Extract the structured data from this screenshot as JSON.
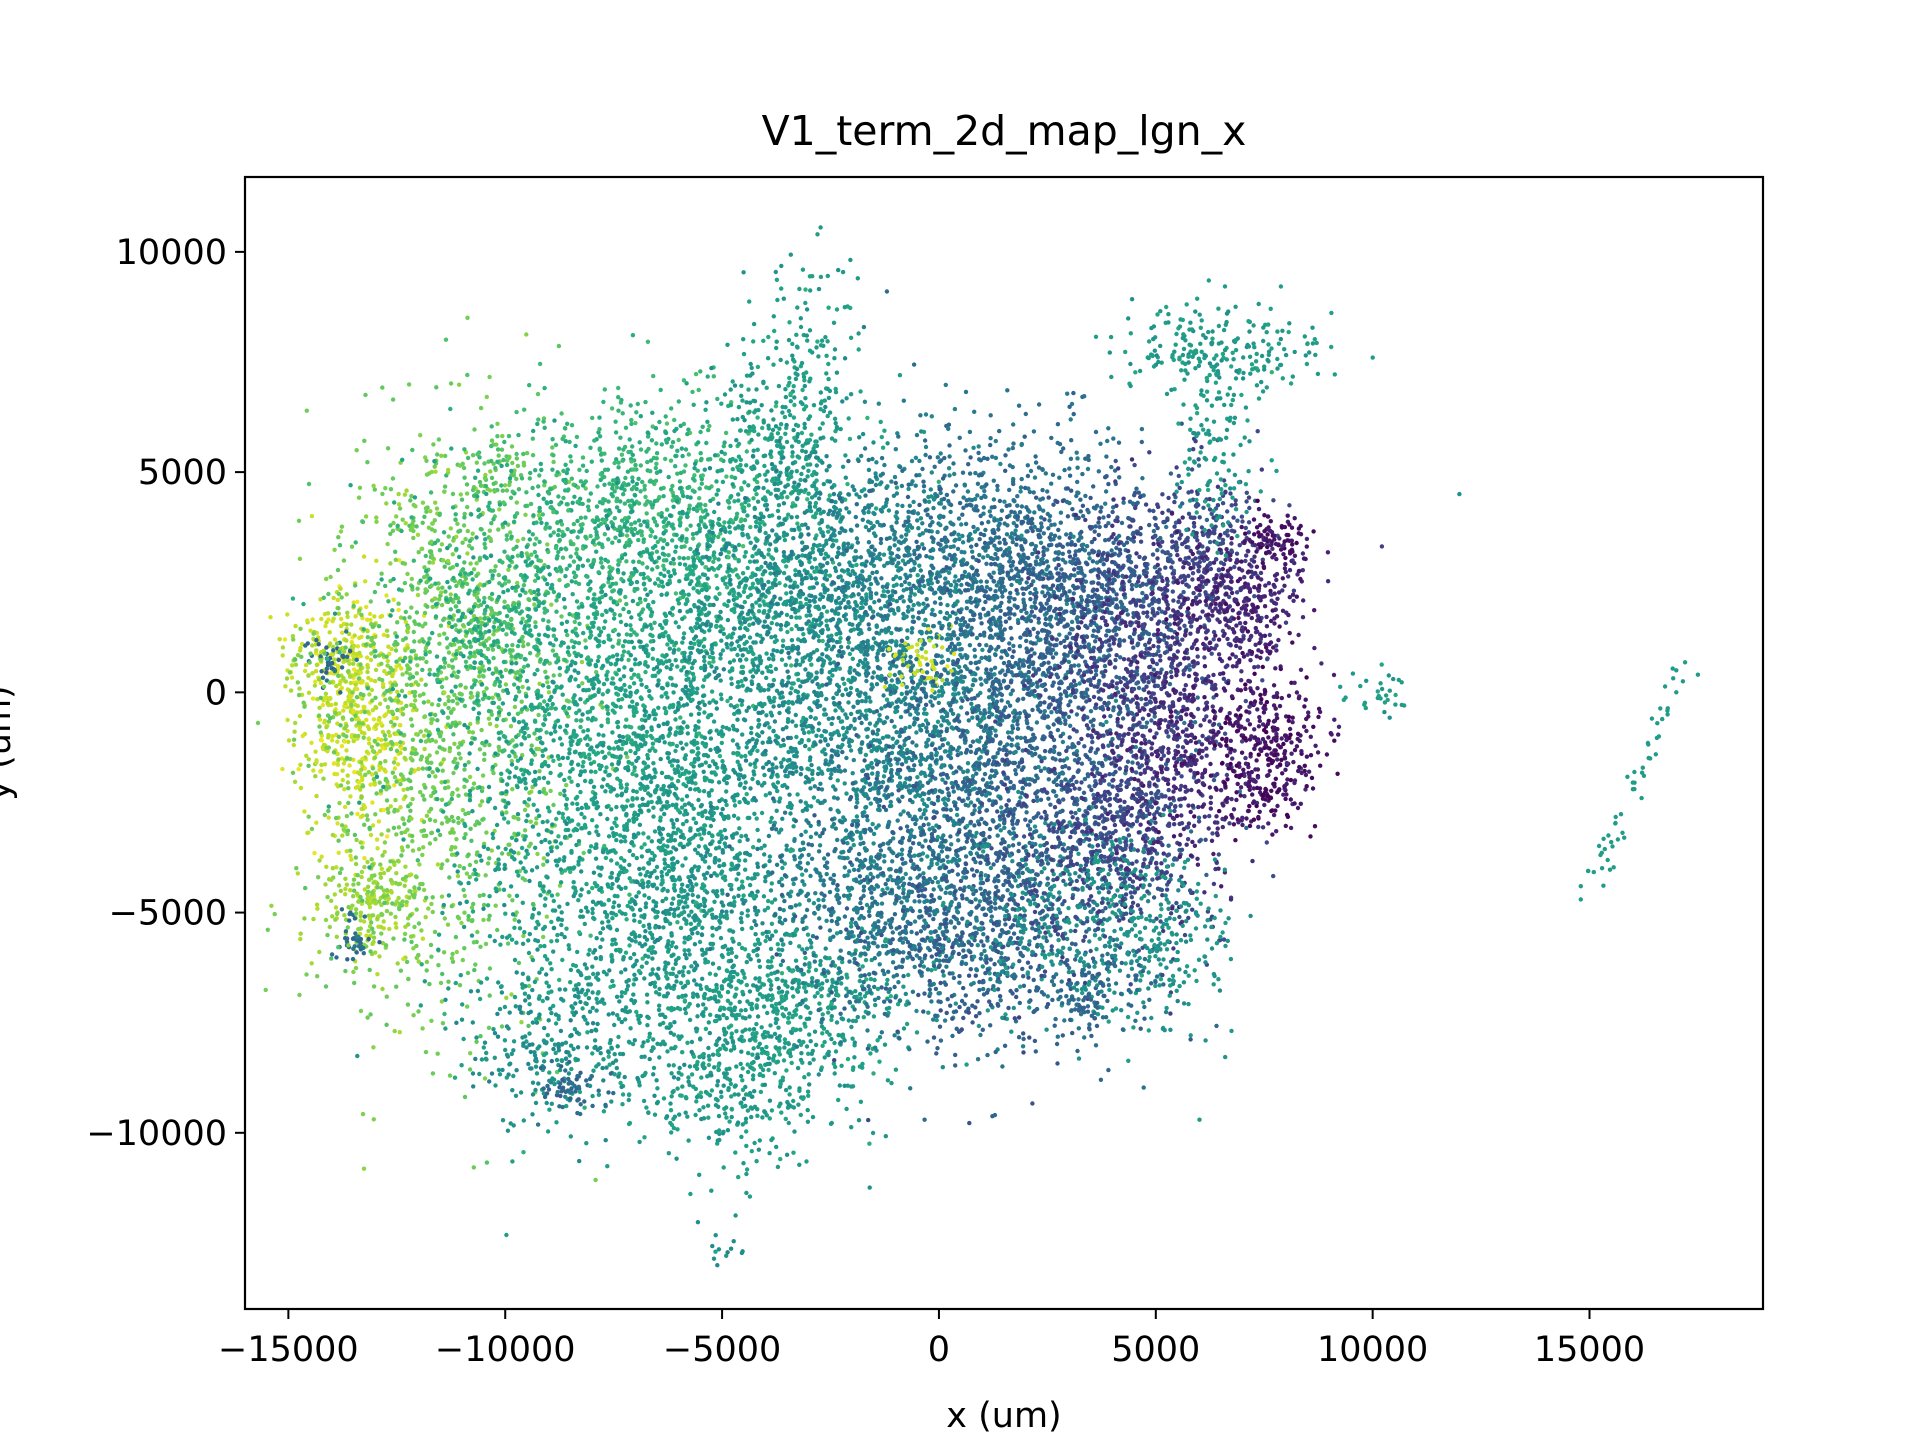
{
  "chart_data": {
    "type": "scatter",
    "title": "V1_term_2d_map_lgn_x",
    "xlabel": "x (um)",
    "ylabel": "y (um)",
    "xlim": [
      -16000,
      19000
    ],
    "ylim": [
      -14000,
      11700
    ],
    "xticks": [
      {
        "value": -15000,
        "label": "−15000"
      },
      {
        "value": -10000,
        "label": "−10000"
      },
      {
        "value": -5000,
        "label": "−5000"
      },
      {
        "value": 0,
        "label": "0"
      },
      {
        "value": 5000,
        "label": "5000"
      },
      {
        "value": 10000,
        "label": "10000"
      },
      {
        "value": 15000,
        "label": "15000"
      }
    ],
    "yticks": [
      {
        "value": 10000,
        "label": "10000"
      },
      {
        "value": 5000,
        "label": "5000"
      },
      {
        "value": 0,
        "label": "0"
      },
      {
        "value": -5000,
        "label": "−5000"
      },
      {
        "value": -10000,
        "label": "−10000"
      }
    ],
    "colormap": "viridis",
    "grid": false,
    "legend": "none",
    "clusters": [
      {
        "x": -13400,
        "y": -500,
        "sx": 700,
        "sy": 1500,
        "c": 0.92,
        "n": 500
      },
      {
        "x": -13000,
        "y": -4800,
        "sx": 700,
        "sy": 700,
        "c": 0.85,
        "n": 220
      },
      {
        "x": -14000,
        "y": 800,
        "sx": 500,
        "sy": 600,
        "c": 0.9,
        "n": 120
      },
      {
        "x": -14000,
        "y": 800,
        "sx": 250,
        "sy": 300,
        "c": 0.35,
        "n": 40
      },
      {
        "x": -13500,
        "y": -5600,
        "sx": 250,
        "sy": 300,
        "c": 0.35,
        "n": 40
      },
      {
        "x": -11500,
        "y": -1200,
        "sx": 1500,
        "sy": 3200,
        "c": 0.78,
        "n": 1100
      },
      {
        "x": -10500,
        "y": 1800,
        "sx": 1200,
        "sy": 1200,
        "c": 0.72,
        "n": 350
      },
      {
        "x": -11500,
        "y": 3800,
        "sx": 700,
        "sy": 800,
        "c": 0.8,
        "n": 70
      },
      {
        "x": -10000,
        "y": 5000,
        "sx": 600,
        "sy": 400,
        "c": 0.75,
        "n": 90
      },
      {
        "x": -8500,
        "y": 1500,
        "sx": 2000,
        "sy": 2000,
        "c": 0.62,
        "n": 850
      },
      {
        "x": -7000,
        "y": 4400,
        "sx": 1500,
        "sy": 1200,
        "c": 0.66,
        "n": 650
      },
      {
        "x": -8500,
        "y": -4500,
        "sx": 1500,
        "sy": 2400,
        "c": 0.56,
        "n": 650
      },
      {
        "x": -7500,
        "y": -1000,
        "sx": 1500,
        "sy": 1500,
        "c": 0.58,
        "n": 450
      },
      {
        "x": -9000,
        "y": -8000,
        "sx": 900,
        "sy": 900,
        "c": 0.5,
        "n": 200
      },
      {
        "x": -8500,
        "y": -9000,
        "sx": 400,
        "sy": 300,
        "c": 0.35,
        "n": 60
      },
      {
        "x": -5500,
        "y": -2500,
        "sx": 1300,
        "sy": 1800,
        "c": 0.55,
        "n": 550
      },
      {
        "x": -5800,
        "y": -5000,
        "sx": 1300,
        "sy": 1500,
        "c": 0.52,
        "n": 550
      },
      {
        "x": -4500,
        "y": 2600,
        "sx": 1500,
        "sy": 1500,
        "c": 0.58,
        "n": 700
      },
      {
        "x": -3500,
        "y": 5800,
        "sx": 800,
        "sy": 1400,
        "c": 0.56,
        "n": 350
      },
      {
        "x": -3000,
        "y": 8500,
        "sx": 600,
        "sy": 1000,
        "c": 0.56,
        "n": 40
      },
      {
        "x": -3000,
        "y": 0,
        "sx": 1800,
        "sy": 1800,
        "c": 0.5,
        "n": 850
      },
      {
        "x": -3500,
        "y": -7000,
        "sx": 1500,
        "sy": 1000,
        "c": 0.56,
        "n": 550
      },
      {
        "x": -4800,
        "y": -8800,
        "sx": 1300,
        "sy": 900,
        "c": 0.55,
        "n": 350
      },
      {
        "x": -5000,
        "y": -12500,
        "sx": 250,
        "sy": 300,
        "c": 0.5,
        "n": 14
      },
      {
        "x": -1500,
        "y": 3000,
        "sx": 1500,
        "sy": 1300,
        "c": 0.45,
        "n": 650
      },
      {
        "x": -500,
        "y": -1000,
        "sx": 1800,
        "sy": 2200,
        "c": 0.45,
        "n": 1200
      },
      {
        "x": -1000,
        "y": -5000,
        "sx": 1500,
        "sy": 1300,
        "c": 0.4,
        "n": 650
      },
      {
        "x": -500,
        "y": 700,
        "sx": 400,
        "sy": 400,
        "c": 0.92,
        "n": 50
      },
      {
        "x": 1500,
        "y": 3000,
        "sx": 1500,
        "sy": 1500,
        "c": 0.37,
        "n": 800
      },
      {
        "x": 2000,
        "y": -1000,
        "sx": 1800,
        "sy": 2000,
        "c": 0.33,
        "n": 1100
      },
      {
        "x": 1000,
        "y": -5200,
        "sx": 1500,
        "sy": 1500,
        "c": 0.3,
        "n": 650
      },
      {
        "x": 3500,
        "y": 2200,
        "sx": 1300,
        "sy": 1300,
        "c": 0.3,
        "n": 650
      },
      {
        "x": 3000,
        "y": -5000,
        "sx": 1300,
        "sy": 1200,
        "c": 0.5,
        "n": 350
      },
      {
        "x": 4000,
        "y": -3000,
        "sx": 1200,
        "sy": 1500,
        "c": 0.22,
        "n": 650
      },
      {
        "x": 5000,
        "y": 1000,
        "sx": 1200,
        "sy": 1500,
        "c": 0.18,
        "n": 550
      },
      {
        "x": 6000,
        "y": 3500,
        "sx": 800,
        "sy": 800,
        "c": 0.22,
        "n": 250
      },
      {
        "x": 5500,
        "y": -1500,
        "sx": 900,
        "sy": 1300,
        "c": 0.12,
        "n": 350
      },
      {
        "x": 7000,
        "y": 2000,
        "sx": 800,
        "sy": 900,
        "c": 0.1,
        "n": 350
      },
      {
        "x": 7500,
        "y": -1200,
        "sx": 700,
        "sy": 800,
        "c": 0.05,
        "n": 300
      },
      {
        "x": 7800,
        "y": 3500,
        "sx": 400,
        "sy": 300,
        "c": 0.05,
        "n": 80
      },
      {
        "x": 7500,
        "y": -2500,
        "sx": 500,
        "sy": 300,
        "c": 0.05,
        "n": 60
      },
      {
        "x": 5000,
        "y": -5500,
        "sx": 900,
        "sy": 1200,
        "c": 0.52,
        "n": 250
      },
      {
        "x": 3500,
        "y": -6800,
        "sx": 700,
        "sy": 600,
        "c": 0.35,
        "n": 120
      },
      {
        "x": 6500,
        "y": 7800,
        "sx": 1200,
        "sy": 500,
        "c": 0.55,
        "n": 220
      },
      {
        "x": 6500,
        "y": 5500,
        "sx": 500,
        "sy": 1200,
        "c": 0.55,
        "n": 120
      },
      {
        "x": 10000,
        "y": 0,
        "sx": 400,
        "sy": 300,
        "c": 0.55,
        "n": 30
      }
    ],
    "strays": [
      {
        "x": 10000,
        "y": 7600,
        "c": 0.55
      },
      {
        "x": 12000,
        "y": 4500,
        "c": 0.5
      },
      {
        "x": 14800,
        "y": -4400,
        "c": 0.55
      },
      {
        "x": 14800,
        "y": -4700,
        "c": 0.55
      },
      {
        "x": 15500,
        "y": -3400,
        "c": 0.55
      },
      {
        "x": 15800,
        "y": -3300,
        "c": 0.55
      },
      {
        "x": 16000,
        "y": -2200,
        "c": 0.55
      },
      {
        "x": 16200,
        "y": -2400,
        "c": 0.55
      },
      {
        "x": 16400,
        "y": -1500,
        "c": 0.55
      },
      {
        "x": 16600,
        "y": -1000,
        "c": 0.55
      },
      {
        "x": 16800,
        "y": -500,
        "c": 0.55
      },
      {
        "x": 17000,
        "y": 0,
        "c": 0.55
      },
      {
        "x": 17000,
        "y": 500,
        "c": 0.55
      },
      {
        "x": 17500,
        "y": 400,
        "c": 0.55
      },
      {
        "x": -3500,
        "y": -10500,
        "c": 0.5
      },
      {
        "x": -2800,
        "y": 10400,
        "c": 0.55
      },
      {
        "x": -1200,
        "y": 9100,
        "c": 0.35
      },
      {
        "x": -900,
        "y": 7200,
        "c": 0.55
      }
    ],
    "line_strays": {
      "from": [
        15000,
        -4500
      ],
      "to": [
        17100,
        500
      ],
      "c": 0.55,
      "n": 45
    }
  }
}
